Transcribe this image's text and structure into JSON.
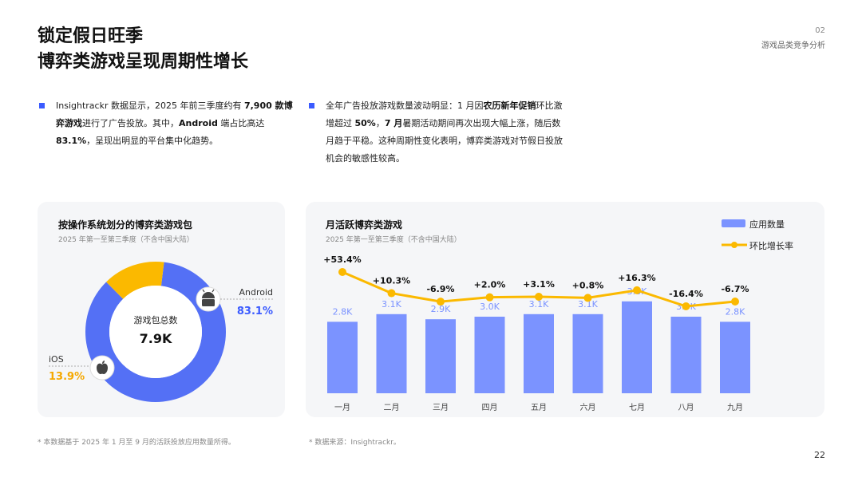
{
  "header": {
    "title_line1": "锁定假日旺季",
    "title_line2": "博弈类游戏呈现周期性增长",
    "section_no": "02",
    "section_name": "游戏品类竞争分析",
    "page_number": "22"
  },
  "bullets": [
    {
      "parts": [
        {
          "t": "Insightrackr 数据显示，2025 年前三季度约有 ",
          "b": false
        },
        {
          "t": "7,900 款博弈游戏",
          "b": true
        },
        {
          "t": "进行了广告投放。其中，",
          "b": false
        },
        {
          "t": "Android",
          "b": true
        },
        {
          "t": " 端占比高达 ",
          "b": false
        },
        {
          "t": "83.1%",
          "b": true
        },
        {
          "t": "，呈现出明显的平台集中化趋势。",
          "b": false
        }
      ]
    },
    {
      "parts": [
        {
          "t": "全年广告投放游戏数量波动明显：1 月因",
          "b": false
        },
        {
          "t": "农历新年促销",
          "b": true
        },
        {
          "t": "环比激增超过 ",
          "b": false
        },
        {
          "t": "50%",
          "b": true
        },
        {
          "t": "，",
          "b": false
        },
        {
          "t": "7 月",
          "b": true
        },
        {
          "t": "暑期活动期间再次出现大幅上涨，随后数月趋于平稳。这种周期性变化表明，博弈类游戏对节假日投放机会的敏感性较高。",
          "b": false
        }
      ]
    }
  ],
  "left_card": {
    "title": "按操作系统划分的博弈类游戏包",
    "subtitle": "2025 年第一至第三季度（不含中国大陆）",
    "center_label": "游戏包总数",
    "center_value": "7.9K",
    "android_label": "Android",
    "android_pct": "83.1%",
    "ios_label": "iOS",
    "ios_pct": "13.9%",
    "android_color": "#5470f5",
    "ios_color": "#fbb900",
    "footnote": "* 本数据基于 2025 年 1 月至 9 月的活跃投放应用数量所得。"
  },
  "right_card": {
    "title": "月活跃博弈类游戏",
    "subtitle": "2025 年第一至第三季度（不含中国大陆）",
    "legend_bar": "应用数量",
    "legend_line": "环比增长率",
    "footnote": "* 数据来源：Insightrackr。"
  },
  "chart_data": {
    "type": "bar",
    "title": "月活跃博弈类游戏",
    "categories": [
      "一月",
      "二月",
      "三月",
      "四月",
      "五月",
      "六月",
      "七月",
      "八月",
      "九月"
    ],
    "series": [
      {
        "name": "应用数量",
        "type": "bar",
        "values": [
          2.8,
          3.1,
          2.9,
          3.0,
          3.1,
          3.1,
          3.6,
          3.0,
          2.8
        ],
        "labels": [
          "2.8K",
          "3.1K",
          "2.9K",
          "3.0K",
          "3.1K",
          "3.1K",
          "3.6K",
          "3.0K",
          "2.8K"
        ],
        "color": "#7b93ff"
      },
      {
        "name": "环比增长率",
        "type": "line",
        "values": [
          53.4,
          10.3,
          -6.9,
          2.0,
          3.1,
          0.8,
          16.3,
          -16.4,
          -6.7
        ],
        "labels": [
          "+53.4%",
          "+10.3%",
          "-6.9%",
          "+2.0%",
          "+3.1%",
          "+0.8%",
          "+16.3%",
          "-16.4%",
          "-6.7%"
        ],
        "color": "#fbb900"
      }
    ],
    "legend": "top-right",
    "grid": false
  },
  "donut_data": {
    "type": "pie",
    "slices": [
      {
        "name": "Android",
        "value": 83.1
      },
      {
        "name": "iOS",
        "value": 13.9
      }
    ]
  }
}
